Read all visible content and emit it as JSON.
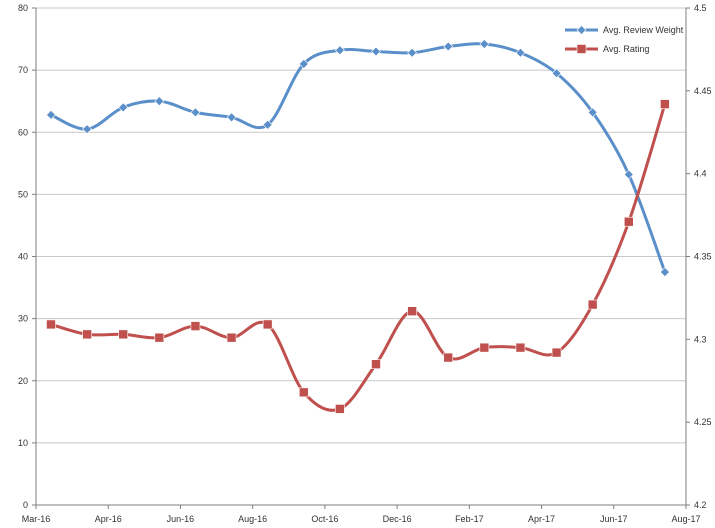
{
  "chart_data": {
    "type": "line",
    "title": "",
    "x_ticks": [
      "Mar-16",
      "Apr-16",
      "Jun-16",
      "Aug-16",
      "Oct-16",
      "Dec-16",
      "Feb-17",
      "Apr-17",
      "Jun-17",
      "Aug-17"
    ],
    "x": [
      "Mar-16",
      "Apr-16",
      "May-16",
      "Jun-16",
      "Jul-16",
      "Aug-16",
      "Sep-16",
      "Oct-16",
      "Nov-16",
      "Dec-16",
      "Jan-17",
      "Feb-17",
      "Mar-17",
      "Apr-17",
      "May-17",
      "Jun-17",
      "Jul-17",
      "Aug-17"
    ],
    "y_left": {
      "ylim": [
        0,
        80
      ],
      "ticks": [
        "0",
        "10",
        "20",
        "30",
        "40",
        "50",
        "60",
        "70",
        "80"
      ]
    },
    "y_right": {
      "ylim": [
        4.2,
        4.5
      ],
      "ticks": [
        "4.2",
        "4.25",
        "4.3",
        "4.35",
        "4.4",
        "4.45",
        "4.5"
      ]
    },
    "grid": "horizontal",
    "legend_position": "top-right",
    "series": [
      {
        "name": "Avg. Review Weight",
        "axis": "left",
        "color": "#5b8fc9",
        "marker": "diamond",
        "values": [
          62.8,
          60.5,
          64.0,
          65.0,
          63.2,
          62.4,
          61.2,
          71.0,
          73.2,
          73.0,
          72.8,
          73.8,
          74.2,
          72.8,
          69.5,
          63.2,
          53.2,
          37.5
        ]
      },
      {
        "name": "Avg. Rating",
        "axis": "right",
        "color": "#c0504d",
        "marker": "square",
        "values": [
          4.309,
          4.303,
          4.303,
          4.301,
          4.308,
          4.301,
          4.309,
          4.268,
          4.258,
          4.285,
          4.317,
          4.289,
          4.295,
          4.295,
          4.292,
          4.321,
          4.371,
          4.442
        ]
      }
    ]
  }
}
